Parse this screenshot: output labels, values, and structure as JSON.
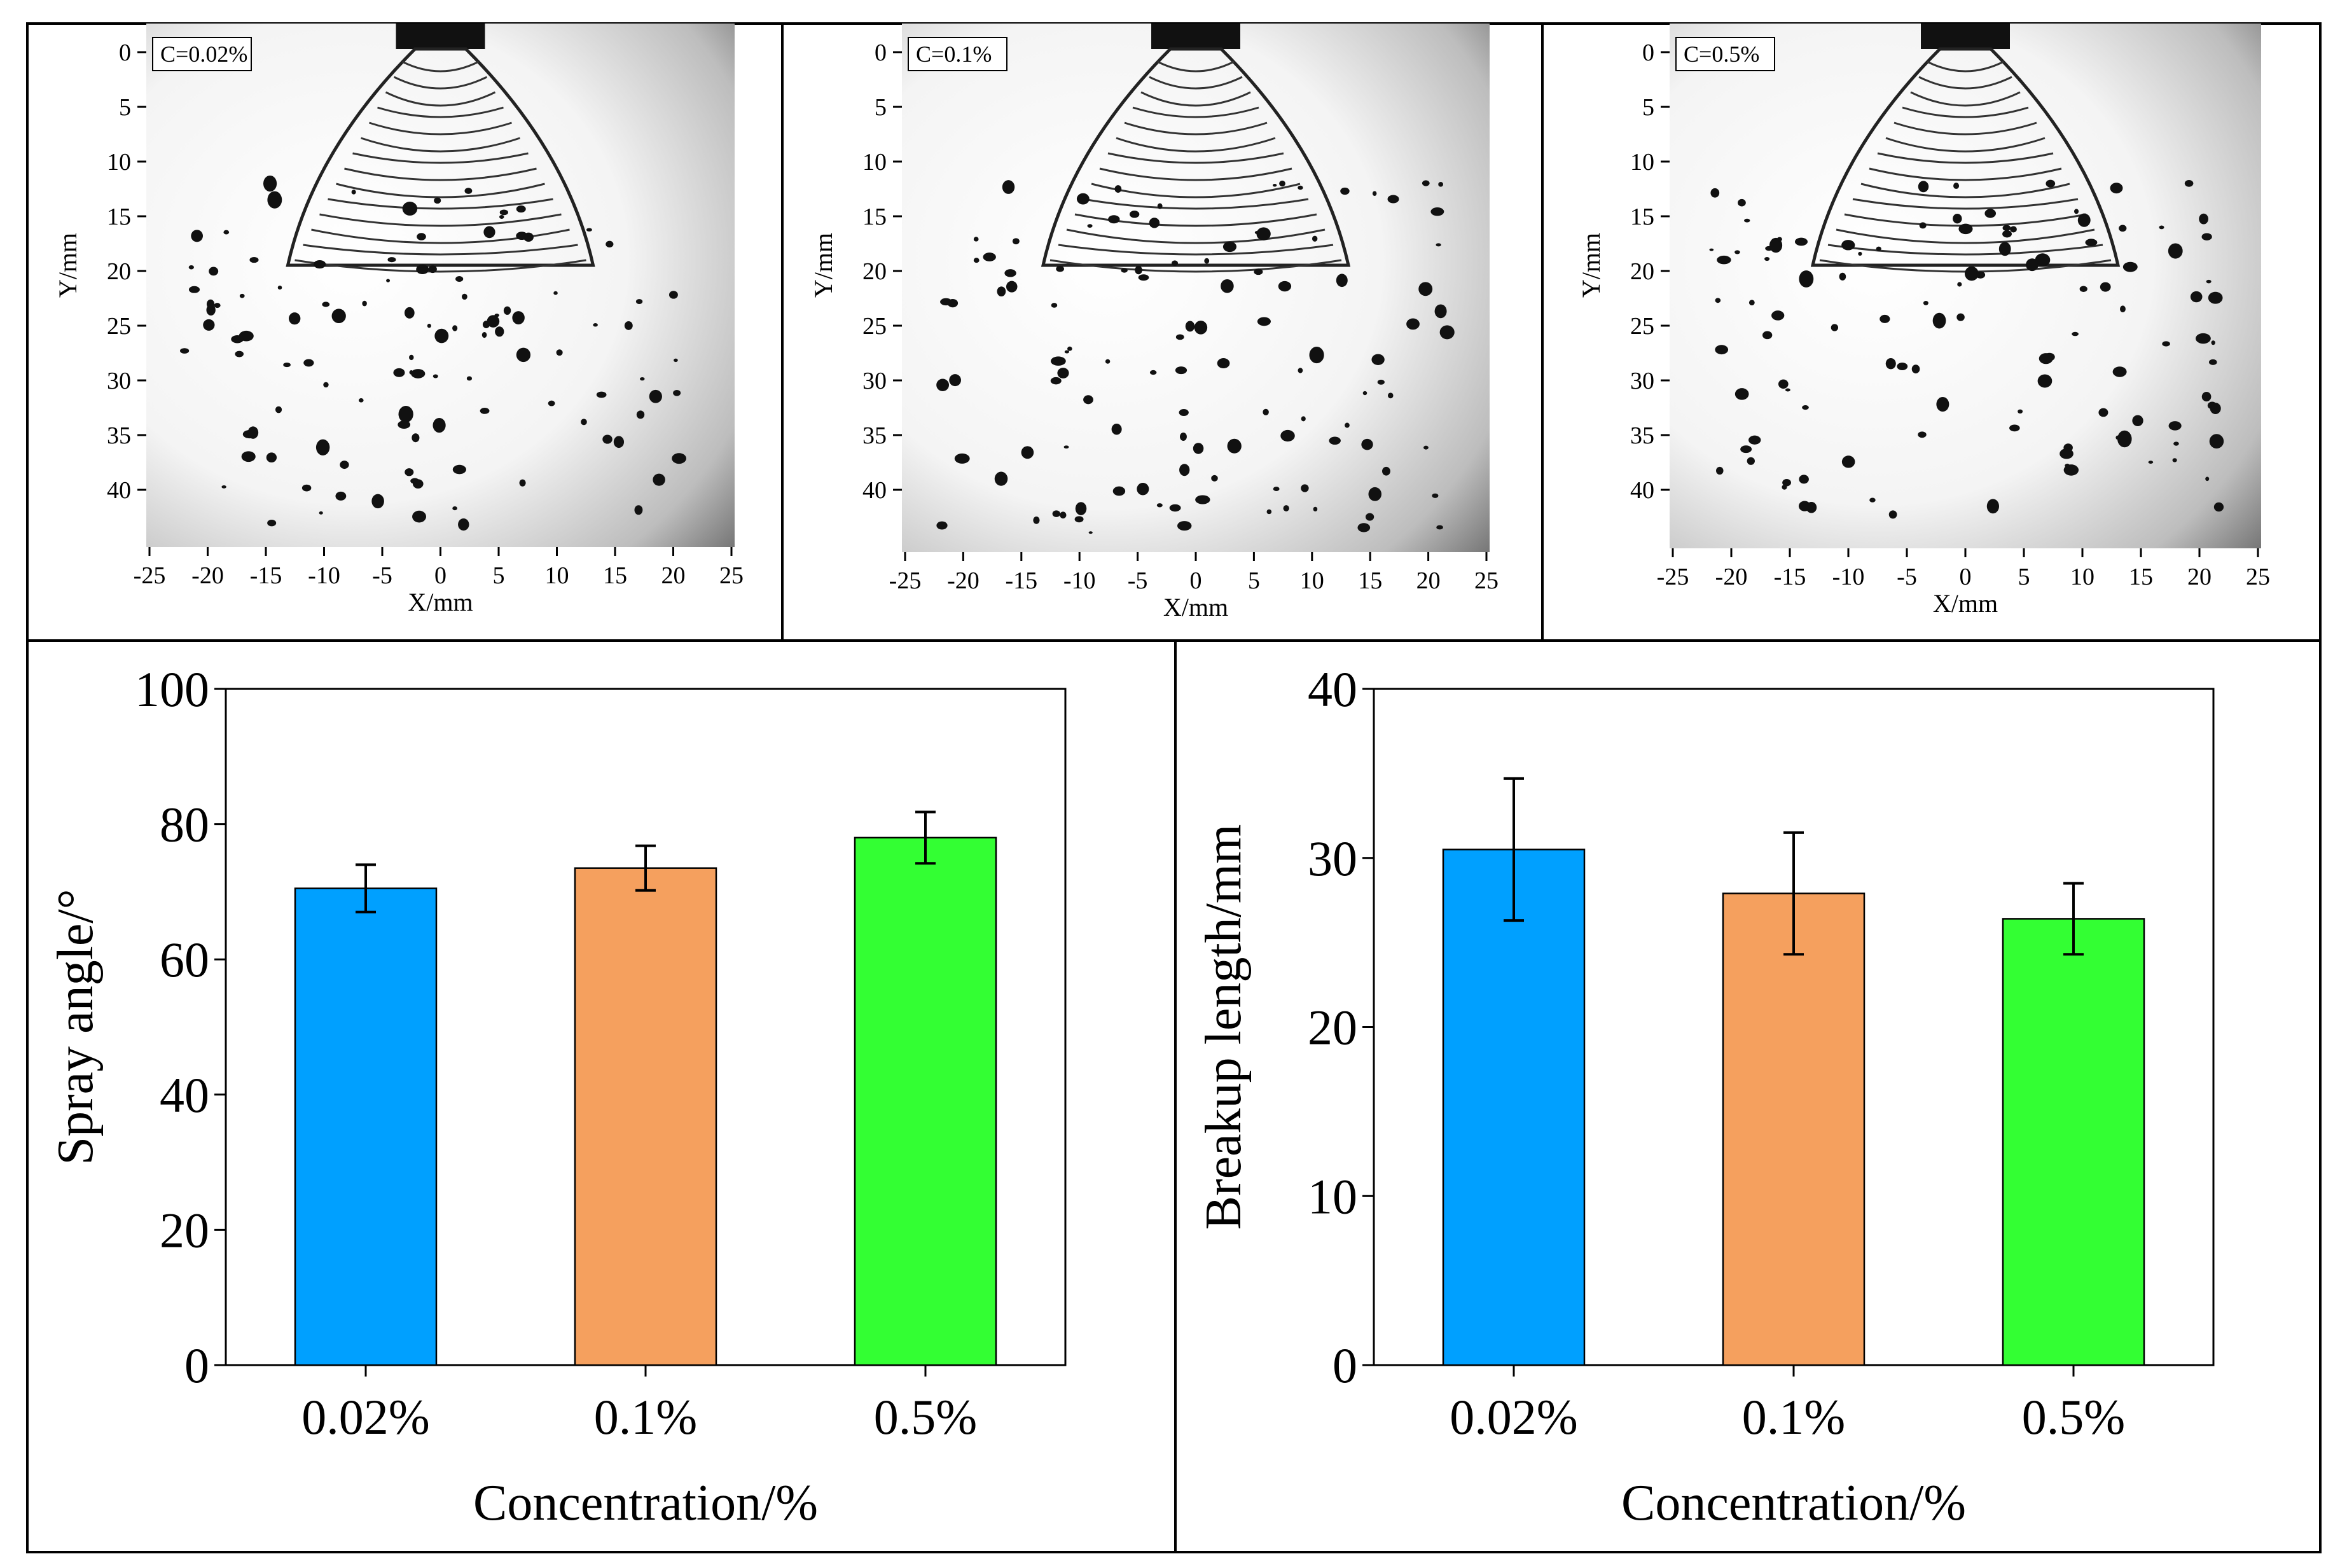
{
  "colors": {
    "bar_0_02": "#00a0ff",
    "bar_0_1": "#f5a05e",
    "bar_0_5": "#33ff33",
    "frame": "#000000",
    "image_bg": "#f2f2f2"
  },
  "photos": [
    {
      "label": "C=0.02%",
      "xlabel": "X/mm",
      "ylabel": "Y/mm",
      "x_ticks": [
        "-25",
        "-20",
        "-15",
        "-10",
        "-5",
        "0",
        "5",
        "10",
        "15",
        "20",
        "25"
      ],
      "y_ticks": [
        "0",
        "5",
        "10",
        "15",
        "20",
        "25",
        "30",
        "35",
        "40"
      ]
    },
    {
      "label": "C=0.1%",
      "xlabel": "X/mm",
      "ylabel": "Y/mm",
      "x_ticks": [
        "-25",
        "-20",
        "-15",
        "-10",
        "-5",
        "0",
        "5",
        "10",
        "15",
        "20",
        "25"
      ],
      "y_ticks": [
        "0",
        "5",
        "10",
        "15",
        "20",
        "25",
        "30",
        "35",
        "40"
      ]
    },
    {
      "label": "C=0.5%",
      "xlabel": "X/mm",
      "ylabel": "Y/mm",
      "x_ticks": [
        "-25",
        "-20",
        "-15",
        "-10",
        "-5",
        "0",
        "5",
        "10",
        "15",
        "20",
        "25"
      ],
      "y_ticks": [
        "0",
        "5",
        "10",
        "15",
        "20",
        "25",
        "30",
        "35",
        "40"
      ]
    }
  ],
  "chart_data": [
    {
      "type": "bar",
      "categories": [
        "0.02%",
        "0.1%",
        "0.5%"
      ],
      "values": [
        70.5,
        73.5,
        78.0
      ],
      "errors": [
        3.5,
        3.3,
        3.8
      ],
      "xlabel": "Concentration/%",
      "ylabel": "Spray angle/°",
      "ylim": [
        0,
        100
      ],
      "yticks": [
        "0",
        "20",
        "40",
        "60",
        "80",
        "100"
      ],
      "grid": false
    },
    {
      "type": "bar",
      "categories": [
        "0.02%",
        "0.1%",
        "0.5%"
      ],
      "values": [
        30.5,
        27.9,
        26.4
      ],
      "errors": [
        4.2,
        3.6,
        2.1
      ],
      "xlabel": "Concentration/%",
      "ylabel": "Breakup length/mm",
      "ylim": [
        0,
        40
      ],
      "yticks": [
        "0",
        "10",
        "20",
        "30",
        "40"
      ],
      "grid": false
    }
  ]
}
